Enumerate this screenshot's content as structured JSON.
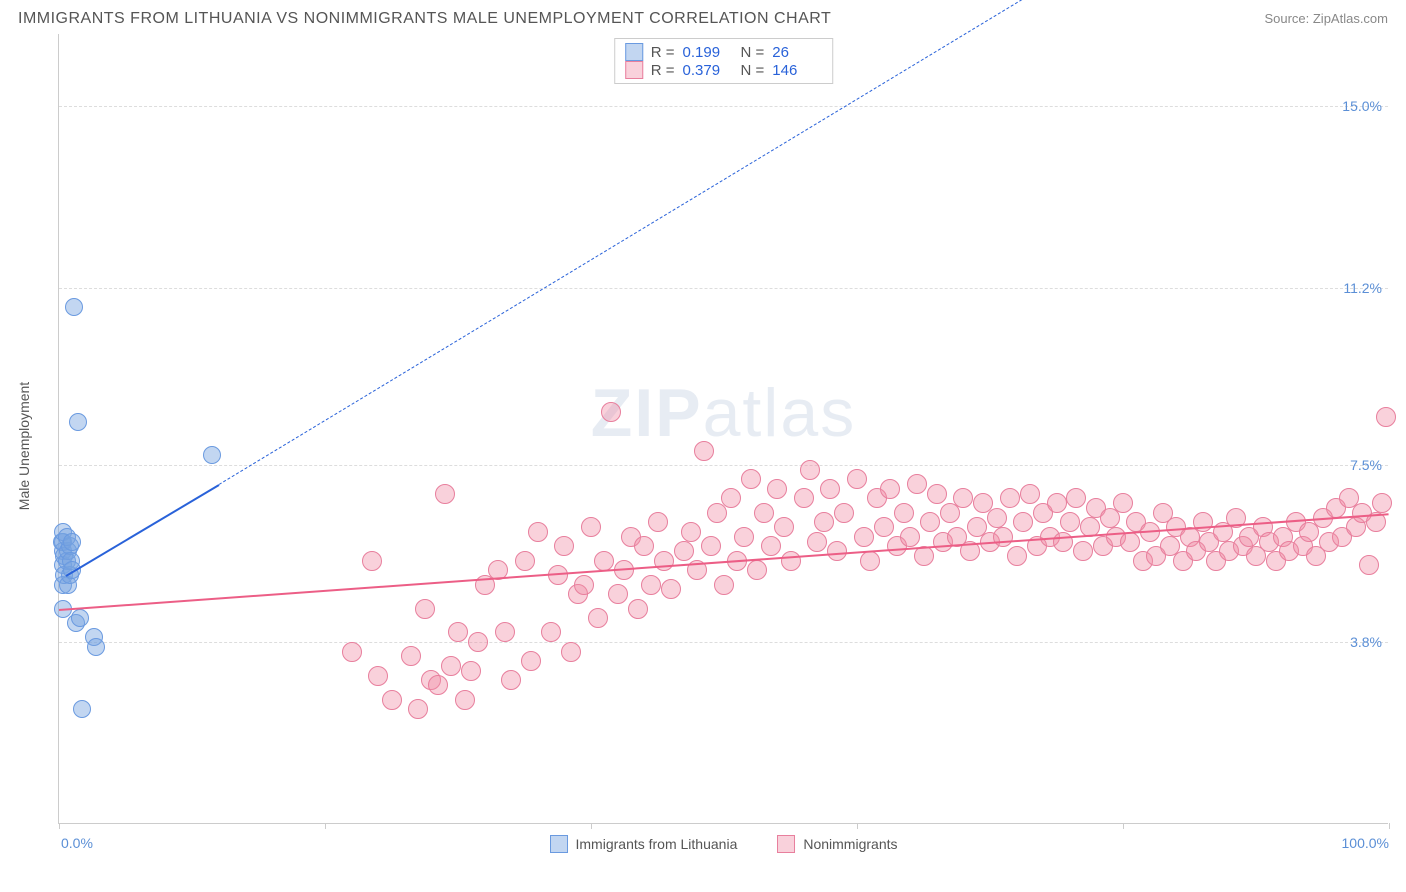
{
  "title": "IMMIGRANTS FROM LITHUANIA VS NONIMMIGRANTS MALE UNEMPLOYMENT CORRELATION CHART",
  "source_label": "Source: ",
  "source_name": "ZipAtlas.com",
  "watermark_a": "ZIP",
  "watermark_b": "atlas",
  "ylabel": "Male Unemployment",
  "chart": {
    "type": "scatter",
    "background_color": "#ffffff",
    "grid_color": "#dddddd",
    "axis_color": "#cccccc",
    "xlim": [
      0,
      100
    ],
    "ylim": [
      0,
      16.5
    ],
    "xticks": [
      0,
      20,
      40,
      60,
      80,
      100
    ],
    "xtick_labels": {
      "0": "0.0%",
      "100": "100.0%"
    },
    "yticks": [
      3.8,
      7.5,
      11.2,
      15.0
    ],
    "ytick_labels": [
      "3.8%",
      "7.5%",
      "11.2%",
      "15.0%"
    ],
    "label_fontsize": 14,
    "label_color": "#5b8fd6",
    "title_fontsize": 16,
    "title_color": "#555555"
  },
  "series": {
    "blue": {
      "label": "Immigrants from Lithuania",
      "fill": "rgba(120, 165, 225, 0.45)",
      "stroke": "#6a9ae0",
      "line_color": "#2962d9",
      "marker_radius": 9,
      "R_label": "R =",
      "R": "0.199",
      "N_label": "N =",
      "N": "26",
      "trend": {
        "x1": 0.5,
        "y1": 5.2,
        "x2": 12,
        "y2": 7.1,
        "x3": 74,
        "y3": 17.5
      },
      "points": [
        [
          0.3,
          5.0
        ],
        [
          0.3,
          5.4
        ],
        [
          0.3,
          5.7
        ],
        [
          0.3,
          5.9
        ],
        [
          0.2,
          5.9
        ],
        [
          0.3,
          6.1
        ],
        [
          0.4,
          5.6
        ],
        [
          0.4,
          5.2
        ],
        [
          0.6,
          5.5
        ],
        [
          0.7,
          5.0
        ],
        [
          0.7,
          5.7
        ],
        [
          0.8,
          5.2
        ],
        [
          0.8,
          5.8
        ],
        [
          0.6,
          6.0
        ],
        [
          0.9,
          5.5
        ],
        [
          1.0,
          5.3
        ],
        [
          1.0,
          5.9
        ],
        [
          1.3,
          4.2
        ],
        [
          1.6,
          4.3
        ],
        [
          2.6,
          3.9
        ],
        [
          2.8,
          3.7
        ],
        [
          1.1,
          10.8
        ],
        [
          1.4,
          8.4
        ],
        [
          0.3,
          4.5
        ],
        [
          1.7,
          2.4
        ],
        [
          11.5,
          7.7
        ]
      ]
    },
    "pink": {
      "label": "Nonimmigrants",
      "fill": "rgba(240, 140, 165, 0.40)",
      "stroke": "#e87f9d",
      "line_color": "#ec5e86",
      "marker_radius": 10,
      "R_label": "R =",
      "R": "0.379",
      "N_label": "N =",
      "N": "146",
      "trend": {
        "x1": 0,
        "y1": 4.5,
        "x2": 100,
        "y2": 6.5
      },
      "points": [
        [
          22.0,
          3.6
        ],
        [
          23.5,
          5.5
        ],
        [
          24.0,
          3.1
        ],
        [
          25.0,
          2.6
        ],
        [
          26.5,
          3.5
        ],
        [
          27.0,
          2.4
        ],
        [
          27.5,
          4.5
        ],
        [
          28.0,
          3.0
        ],
        [
          28.5,
          2.9
        ],
        [
          29.0,
          6.9
        ],
        [
          29.5,
          3.3
        ],
        [
          30.0,
          4.0
        ],
        [
          30.5,
          2.6
        ],
        [
          31.0,
          3.2
        ],
        [
          31.5,
          3.8
        ],
        [
          32.0,
          5.0
        ],
        [
          33.0,
          5.3
        ],
        [
          33.5,
          4.0
        ],
        [
          34.0,
          3.0
        ],
        [
          35.0,
          5.5
        ],
        [
          35.5,
          3.4
        ],
        [
          36.0,
          6.1
        ],
        [
          37.0,
          4.0
        ],
        [
          37.5,
          5.2
        ],
        [
          38.0,
          5.8
        ],
        [
          38.5,
          3.6
        ],
        [
          39.0,
          4.8
        ],
        [
          39.5,
          5.0
        ],
        [
          40.0,
          6.2
        ],
        [
          40.5,
          4.3
        ],
        [
          41.0,
          5.5
        ],
        [
          41.5,
          8.6
        ],
        [
          42.0,
          4.8
        ],
        [
          42.5,
          5.3
        ],
        [
          43.0,
          6.0
        ],
        [
          43.5,
          4.5
        ],
        [
          44.0,
          5.8
        ],
        [
          44.5,
          5.0
        ],
        [
          45.0,
          6.3
        ],
        [
          45.5,
          5.5
        ],
        [
          46.0,
          4.9
        ],
        [
          47.0,
          5.7
        ],
        [
          47.5,
          6.1
        ],
        [
          48.0,
          5.3
        ],
        [
          48.5,
          7.8
        ],
        [
          49.0,
          5.8
        ],
        [
          49.5,
          6.5
        ],
        [
          50.0,
          5.0
        ],
        [
          50.5,
          6.8
        ],
        [
          51.0,
          5.5
        ],
        [
          51.5,
          6.0
        ],
        [
          52.0,
          7.2
        ],
        [
          52.5,
          5.3
        ],
        [
          53.0,
          6.5
        ],
        [
          53.5,
          5.8
        ],
        [
          54.0,
          7.0
        ],
        [
          54.5,
          6.2
        ],
        [
          55.0,
          5.5
        ],
        [
          56.0,
          6.8
        ],
        [
          56.5,
          7.4
        ],
        [
          57.0,
          5.9
        ],
        [
          57.5,
          6.3
        ],
        [
          58.0,
          7.0
        ],
        [
          58.5,
          5.7
        ],
        [
          59.0,
          6.5
        ],
        [
          60.0,
          7.2
        ],
        [
          60.5,
          6.0
        ],
        [
          61.0,
          5.5
        ],
        [
          61.5,
          6.8
        ],
        [
          62.0,
          6.2
        ],
        [
          62.5,
          7.0
        ],
        [
          63.0,
          5.8
        ],
        [
          63.5,
          6.5
        ],
        [
          64.0,
          6.0
        ],
        [
          64.5,
          7.1
        ],
        [
          65.0,
          5.6
        ],
        [
          65.5,
          6.3
        ],
        [
          66.0,
          6.9
        ],
        [
          66.5,
          5.9
        ],
        [
          67.0,
          6.5
        ],
        [
          67.5,
          6.0
        ],
        [
          68.0,
          6.8
        ],
        [
          68.5,
          5.7
        ],
        [
          69.0,
          6.2
        ],
        [
          69.5,
          6.7
        ],
        [
          70.0,
          5.9
        ],
        [
          70.5,
          6.4
        ],
        [
          71.0,
          6.0
        ],
        [
          71.5,
          6.8
        ],
        [
          72.0,
          5.6
        ],
        [
          72.5,
          6.3
        ],
        [
          73.0,
          6.9
        ],
        [
          73.5,
          5.8
        ],
        [
          74.0,
          6.5
        ],
        [
          74.5,
          6.0
        ],
        [
          75.0,
          6.7
        ],
        [
          75.5,
          5.9
        ],
        [
          76.0,
          6.3
        ],
        [
          76.5,
          6.8
        ],
        [
          77.0,
          5.7
        ],
        [
          77.5,
          6.2
        ],
        [
          78.0,
          6.6
        ],
        [
          78.5,
          5.8
        ],
        [
          79.0,
          6.4
        ],
        [
          79.5,
          6.0
        ],
        [
          80.0,
          6.7
        ],
        [
          80.5,
          5.9
        ],
        [
          81.0,
          6.3
        ],
        [
          81.5,
          5.5
        ],
        [
          82.0,
          6.1
        ],
        [
          82.5,
          5.6
        ],
        [
          83.0,
          6.5
        ],
        [
          83.5,
          5.8
        ],
        [
          84.0,
          6.2
        ],
        [
          84.5,
          5.5
        ],
        [
          85.0,
          6.0
        ],
        [
          85.5,
          5.7
        ],
        [
          86.0,
          6.3
        ],
        [
          86.5,
          5.9
        ],
        [
          87.0,
          5.5
        ],
        [
          87.5,
          6.1
        ],
        [
          88.0,
          5.7
        ],
        [
          88.5,
          6.4
        ],
        [
          89.0,
          5.8
        ],
        [
          89.5,
          6.0
        ],
        [
          90.0,
          5.6
        ],
        [
          90.5,
          6.2
        ],
        [
          91.0,
          5.9
        ],
        [
          91.5,
          5.5
        ],
        [
          92.0,
          6.0
        ],
        [
          92.5,
          5.7
        ],
        [
          93.0,
          6.3
        ],
        [
          93.5,
          5.8
        ],
        [
          94.0,
          6.1
        ],
        [
          94.5,
          5.6
        ],
        [
          95.0,
          6.4
        ],
        [
          95.5,
          5.9
        ],
        [
          96.0,
          6.6
        ],
        [
          96.5,
          6.0
        ],
        [
          97.0,
          6.8
        ],
        [
          97.5,
          6.2
        ],
        [
          98.0,
          6.5
        ],
        [
          98.5,
          5.4
        ],
        [
          99.0,
          6.3
        ],
        [
          99.5,
          6.7
        ],
        [
          99.8,
          8.5
        ]
      ]
    }
  }
}
